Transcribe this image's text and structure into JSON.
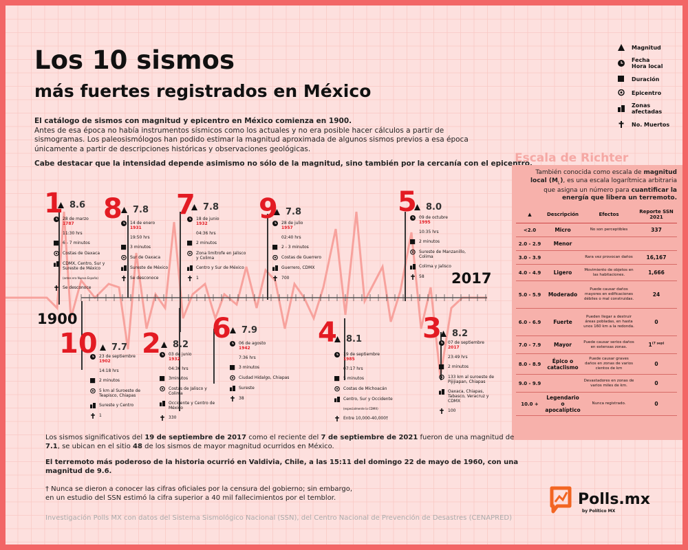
{
  "header": {
    "title_line1": "Los 10 sismos",
    "title_line2": "más fuertes registrados en México",
    "intro_bold": "El catálogo de sismos con magnitud y epicentro en México comienza en 1900.",
    "intro_text": "Antes de esa época no había instrumentos sísmicos como los actuales y no era posible hacer cálculos a partir de sismogramas. Los paleosismólogos han podido estimar la magnitud aproximada de algunos sismos previos a esa época únicamente a partir de descripciones históricas y observaciones geológicas.",
    "note": "Cabe destacar que la intensidad depende asimismo no sólo de la magnitud, sino también por la cercanía con el epicentro."
  },
  "legend": {
    "magnitude": "Magnitud",
    "datetime_1": "Fecha",
    "datetime_2": "Hora local",
    "duration": "Duración",
    "epicenter": "Epicentro",
    "zones_1": "Zonas",
    "zones_2": "afectadas",
    "deaths": "No. Muertos"
  },
  "timeline": {
    "start_year": "1900",
    "end_year": "2017"
  },
  "quakes": [
    {
      "rank": "1",
      "magnitude": "8.6",
      "date": "28 de marzo",
      "year": "1787",
      "time": "11:30 hrs",
      "duration": "6 - 7 minutos",
      "epicenter": "Costas de Oaxaca",
      "zones": "CDMX, Centro, Sur y Sureste de México",
      "zones_note": "(antes era Nueva España)",
      "deaths": "Se desconoce"
    },
    {
      "rank": "8",
      "magnitude": "7.8",
      "date": "14 de enero",
      "year": "1931",
      "time": "19:50 hrs",
      "duration": "3 minutos",
      "epicenter": "Sur de Oaxaca",
      "zones": "Sureste de México",
      "zones_note": "",
      "deaths": "Se desconoce"
    },
    {
      "rank": "7",
      "magnitude": "7.8",
      "date": "18 de junio",
      "year": "1932",
      "time": "04:36 hrs",
      "duration": "2 minutos",
      "epicenter": "Zona limítrofe en Jalisco y Colima",
      "zones": "Centro y Sur de México",
      "zones_note": "",
      "deaths": "1"
    },
    {
      "rank": "9",
      "magnitude": "7.8",
      "date": "28 de julio",
      "year": "1957",
      "time": "02:40 hrs",
      "duration": "2 - 3 minutos",
      "epicenter": "Costas de Guerrero",
      "zones": "Guerrero, CDMX",
      "zones_note": "",
      "deaths": "700"
    },
    {
      "rank": "5",
      "magnitude": "8.0",
      "date": "09 de octubre",
      "year": "1995",
      "time": "10:35 hrs",
      "duration": "2 minutos",
      "epicenter": "Sureste de Manzanillo, Colima",
      "zones": "Colima y Jalisco",
      "zones_note": "",
      "deaths": "58"
    },
    {
      "rank": "10",
      "magnitude": "7.7",
      "date": "23 de septiembre",
      "year": "1902",
      "time": "14:18 hrs",
      "duration": "2 minutos",
      "epicenter": "5 km al Suroeste de Teapisco, Chiapas",
      "zones": "Sureste y Centro",
      "zones_note": "",
      "deaths": "1"
    },
    {
      "rank": "2",
      "magnitude": "8.2",
      "date": "03 de junio",
      "year": "1932",
      "time": "04:36 hrs",
      "duration": "3minutos",
      "epicenter": "Costas de Jalisco y Colima",
      "zones": "Occidente y Centro de México",
      "zones_note": "",
      "deaths": "330"
    },
    {
      "rank": "6",
      "magnitude": "7.9",
      "date": "06 de agosto",
      "year": "1942",
      "time": "7:36 hrs",
      "duration": "3 minutos",
      "epicenter": "Ciudad Hidalgo, Chiapas",
      "zones": "Sureste",
      "zones_note": "",
      "deaths": "38"
    },
    {
      "rank": "4",
      "magnitude": "8.1",
      "date": "19 de septiembre",
      "year": "1985",
      "time": "07:17 hrs",
      "duration": "5 minutos",
      "epicenter": "Costas de Michoacán",
      "zones": "Centro, Sur y Occidente",
      "zones_note": "(especialmente la CDMX)",
      "deaths": "Entre 10,000-40,000†"
    },
    {
      "rank": "3",
      "magnitude": "8.2",
      "date": "07 de septiembre",
      "year": "2017",
      "time": "23:49 hrs",
      "duration": "2 minutos",
      "epicenter": "133 km al suroeste de Pijijiapan, Chiapas",
      "zones": "Oaxaca, Chiapas, Tabasco, Veracruz y CDMX",
      "zones_note": "",
      "deaths": "100"
    }
  ],
  "richter": {
    "title": "Escala de Richter",
    "desc_1": "También conocida como escala de ",
    "desc_bold_1": "magnitud local (M",
    "desc_sub": "L",
    "desc_bold_1b": ")",
    "desc_2": ", es una escala logarítmica arbitraria que asigna un número para ",
    "desc_bold_2": "cuantificar la energía que libera un terremoto.",
    "headers": {
      "magnitude": "▲",
      "description": "Descripción",
      "effects": "Efectos",
      "report": "Reporte SSN 2021"
    },
    "rows": [
      {
        "mag": "<2.0",
        "desc": "Micro",
        "effects": "No son perceptibles",
        "report": "337"
      },
      {
        "mag": "2.0 - 2.9",
        "desc": "Menor",
        "effects": "",
        "report": ""
      },
      {
        "mag": "3.0 - 3.9",
        "desc": "",
        "effects": "Rara vez provocan daños",
        "report": "16,167"
      },
      {
        "mag": "4.0 - 4.9",
        "desc": "Ligero",
        "effects": "Movimiento de objetos en las habitaciones.",
        "report": "1,666"
      },
      {
        "mag": "5.0 - 5.9",
        "desc": "Moderado",
        "effects": "Puede causar daños mayores en edificaciones débiles o mal construidas.",
        "report": "24"
      },
      {
        "mag": "6.0 - 6.9",
        "desc": "Fuerte",
        "effects": "Pueden llegar a destruir áreas pobladas, en hasta unos 160 km a la redonda.",
        "report": "0"
      },
      {
        "mag": "7.0 - 7.9",
        "desc": "Mayor",
        "effects": "Puede causar serios daños en extensas zonas.",
        "report": "1",
        "report_sup": "(7 sep)"
      },
      {
        "mag": "8.0 - 8.9",
        "desc": "Épico o cataclismo",
        "effects": "Puede causar graves daños en zonas de varios cientos de km",
        "report": "0"
      },
      {
        "mag": "9.0 - 9.9",
        "desc": "",
        "effects": "Devastadores en zonas de varios miles de km.",
        "report": "0"
      },
      {
        "mag": "10.0 +",
        "desc": "Legendario o apocalíptico",
        "effects": "Nunca registrado.",
        "report": "0"
      }
    ]
  },
  "footer": {
    "p1_a": "Los sismos significativos del ",
    "p1_b": "19 de septiembre de 2017",
    "p1_c": " como el reciente del ",
    "p1_d": "7 de septiembre de 2021",
    "p1_e": " fueron de una magnitud de ",
    "p1_f": "7.1",
    "p1_g": ", se ubican en el sitio ",
    "p1_h": "48",
    "p1_i": " de los sismos de mayor magnitud ocurridos en México.",
    "p2": "El terremoto más poderoso de la historia ocurrió en Valdivia, Chile, a las 15:11 del domingo 22 de mayo de 1960, con una magnitud de 9.6.",
    "p3_1": "† Nunca se dieron a conocer las cifras oficiales por la censura del gobierno; sin embargo,",
    "p3_2": "en un estudio del SSN estimó la cifra superior a 40 mil fallecimientos por el temblor.",
    "credit": "Investigación Polls MX con datos del Sistema Sismológico Nacional (SSN), del Centro Nacional de Prevención de Desastres (CENAPRED)"
  },
  "brand": {
    "name": "Polls.mx",
    "sub": "by Político MX",
    "accent": "#e31b23",
    "orange": "#f26522"
  }
}
